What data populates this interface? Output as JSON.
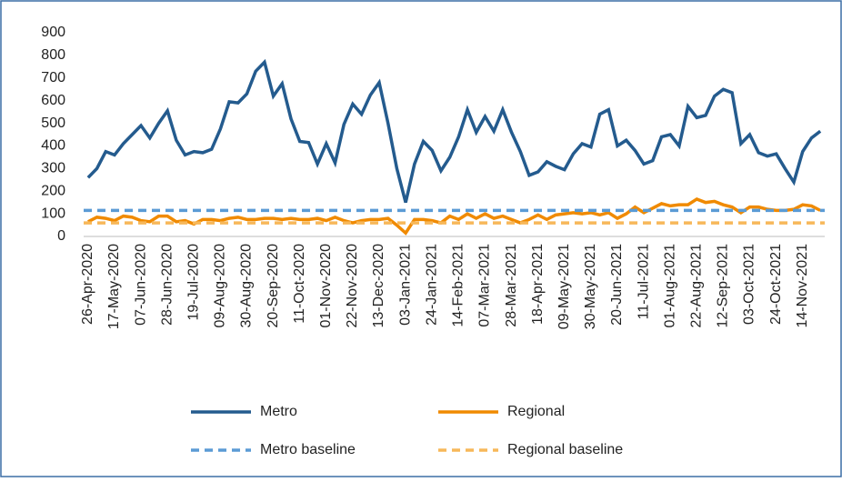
{
  "chart_data": {
    "type": "line",
    "categories": [
      "26-Apr-2020",
      null,
      null,
      "17-May-2020",
      null,
      null,
      "07-Jun-2020",
      null,
      null,
      "28-Jun-2020",
      null,
      null,
      "19-Jul-2020",
      null,
      null,
      "09-Aug-2020",
      null,
      null,
      "30-Aug-2020",
      null,
      null,
      "20-Sep-2020",
      null,
      null,
      "11-Oct-2020",
      null,
      null,
      "01-Nov-2020",
      null,
      null,
      "22-Nov-2020",
      null,
      null,
      "13-Dec-2020",
      null,
      null,
      "03-Jan-2021",
      null,
      null,
      "24-Jan-2021",
      null,
      null,
      "14-Feb-2021",
      null,
      null,
      "07-Mar-2021",
      null,
      null,
      "28-Mar-2021",
      null,
      null,
      "18-Apr-2021",
      null,
      null,
      "09-May-2021",
      null,
      null,
      "30-May-2021",
      null,
      null,
      "20-Jun-2021",
      null,
      null,
      "11-Jul-2021",
      null,
      null,
      "01-Aug-2021",
      null,
      null,
      "22-Aug-2021",
      null,
      null,
      "12-Sep-2021",
      null,
      null,
      "03-Oct-2021",
      null,
      null,
      "24-Oct-2021",
      null,
      null,
      "14-Nov-2021",
      null,
      null
    ],
    "series": [
      {
        "name": "Metro",
        "color": "#245b8e",
        "values": [
          260,
          300,
          375,
          360,
          410,
          450,
          490,
          435,
          500,
          555,
          425,
          360,
          375,
          370,
          385,
          475,
          595,
          590,
          630,
          730,
          770,
          620,
          675,
          520,
          420,
          415,
          320,
          410,
          325,
          495,
          585,
          540,
          625,
          680,
          500,
          300,
          150,
          320,
          420,
          380,
          290,
          350,
          440,
          560,
          460,
          530,
          465,
          560,
          460,
          375,
          270,
          285,
          330,
          310,
          295,
          365,
          410,
          395,
          540,
          560,
          400,
          425,
          380,
          320,
          335,
          440,
          450,
          400,
          575,
          525,
          535,
          620,
          650,
          635,
          410,
          450,
          370,
          355,
          365,
          300,
          240,
          375,
          435,
          465
        ]
      },
      {
        "name": "Regional",
        "color": "#f08a00",
        "values": [
          65,
          85,
          80,
          70,
          90,
          85,
          70,
          65,
          90,
          90,
          65,
          70,
          55,
          75,
          75,
          70,
          80,
          85,
          75,
          75,
          80,
          80,
          75,
          80,
          75,
          75,
          80,
          70,
          85,
          70,
          60,
          70,
          75,
          75,
          80,
          50,
          15,
          75,
          75,
          70,
          60,
          90,
          75,
          100,
          80,
          100,
          80,
          90,
          75,
          60,
          75,
          95,
          75,
          95,
          100,
          105,
          100,
          105,
          95,
          105,
          80,
          100,
          130,
          105,
          125,
          145,
          135,
          140,
          140,
          165,
          150,
          155,
          140,
          130,
          105,
          130,
          130,
          120,
          115,
          115,
          120,
          140,
          135,
          115
        ]
      },
      {
        "name": "Metro baseline",
        "color": "#5b9bd5",
        "dashed": true,
        "value": 115
      },
      {
        "name": "Regional baseline",
        "color": "#f7b85a",
        "dashed": true,
        "value": 60
      }
    ],
    "ylim": [
      0,
      900
    ],
    "yticks": [
      0,
      100,
      200,
      300,
      400,
      500,
      600,
      700,
      800,
      900
    ],
    "grid": false
  }
}
